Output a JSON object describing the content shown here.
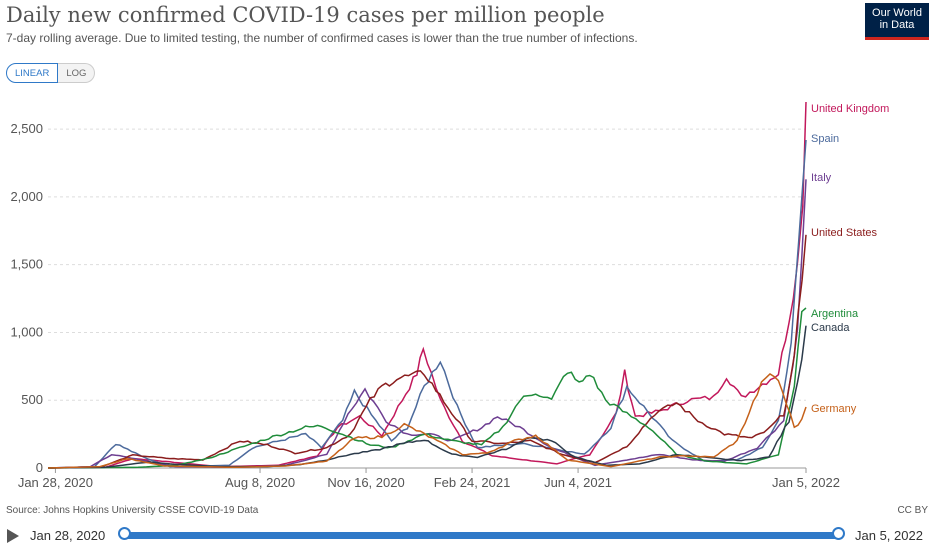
{
  "header": {
    "title": "Daily new confirmed COVID-19 cases per million people",
    "subtitle": "7-day rolling average. Due to limited testing, the number of confirmed cases is lower than the true number of infections.",
    "logo_line1": "Our World",
    "logo_line2": "in Data"
  },
  "controls": {
    "linear_label": "LINEAR",
    "log_label": "LOG",
    "selected": "LINEAR"
  },
  "footer": {
    "source": "Source: Johns Hopkins University CSSE COVID-19 Data",
    "license": "CC BY"
  },
  "timeline": {
    "start_label": "Jan 28, 2020",
    "end_label": "Jan 5, 2022"
  },
  "colors": {
    "accent": "#2f79c8",
    "logo_bg": "#002147",
    "logo_bar": "#ce261e"
  },
  "chart_data": {
    "type": "line",
    "title": "Daily new confirmed COVID-19 cases per million people",
    "ylim": [
      0,
      2700
    ],
    "xlim": [
      "2020-01-21",
      "2022-01-05"
    ],
    "y_ticks": [
      0,
      500,
      1000,
      1500,
      2000,
      2500
    ],
    "y_tick_labels": [
      "0",
      "500",
      "1,000",
      "1,500",
      "2,000",
      "2,500"
    ],
    "x_ticks": [
      "2020-01-28",
      "2020-08-08",
      "2020-11-16",
      "2021-02-24",
      "2021-06-04",
      "2022-01-05"
    ],
    "x_tick_labels": [
      "Jan 28, 2020",
      "Aug 8, 2020",
      "Nov 16, 2020",
      "Feb 24, 2021",
      "Jun 4, 2021",
      "Jan 5, 2022"
    ],
    "grid": true,
    "legend": "right, labels at line ends",
    "series": [
      {
        "name": "United Kingdom",
        "color": "#c2185b",
        "points": [
          [
            "2020-01-21",
            0
          ],
          [
            "2020-03-15",
            5
          ],
          [
            "2020-04-10",
            70
          ],
          [
            "2020-05-15",
            45
          ],
          [
            "2020-07-01",
            10
          ],
          [
            "2020-08-25",
            20
          ],
          [
            "2020-10-01",
            90
          ],
          [
            "2020-10-20",
            300
          ],
          [
            "2020-11-10",
            380
          ],
          [
            "2020-12-01",
            240
          ],
          [
            "2020-12-20",
            500
          ],
          [
            "2021-01-03",
            700
          ],
          [
            "2021-01-09",
            880
          ],
          [
            "2021-01-25",
            500
          ],
          [
            "2021-02-15",
            200
          ],
          [
            "2021-03-15",
            90
          ],
          [
            "2021-05-15",
            30
          ],
          [
            "2021-06-15",
            100
          ],
          [
            "2021-07-10",
            400
          ],
          [
            "2021-07-18",
            700
          ],
          [
            "2021-07-28",
            380
          ],
          [
            "2021-08-20",
            420
          ],
          [
            "2021-09-15",
            500
          ],
          [
            "2021-10-10",
            520
          ],
          [
            "2021-10-22",
            680
          ],
          [
            "2021-11-05",
            520
          ],
          [
            "2021-11-25",
            620
          ],
          [
            "2021-12-10",
            700
          ],
          [
            "2021-12-20",
            1100
          ],
          [
            "2021-12-28",
            1500
          ],
          [
            "2022-01-02",
            2000
          ],
          [
            "2022-01-05",
            2700
          ]
        ]
      },
      {
        "name": "Spain",
        "color": "#4c6a9c",
        "points": [
          [
            "2020-01-21",
            0
          ],
          [
            "2020-03-05",
            10
          ],
          [
            "2020-03-25",
            180
          ],
          [
            "2020-04-20",
            80
          ],
          [
            "2020-05-15",
            10
          ],
          [
            "2020-07-10",
            20
          ],
          [
            "2020-08-01",
            150
          ],
          [
            "2020-09-20",
            250
          ],
          [
            "2020-10-05",
            150
          ],
          [
            "2020-10-25",
            350
          ],
          [
            "2020-11-05",
            560
          ],
          [
            "2020-11-25",
            350
          ],
          [
            "2020-12-10",
            200
          ],
          [
            "2020-12-25",
            300
          ],
          [
            "2021-01-10",
            600
          ],
          [
            "2021-01-25",
            800
          ],
          [
            "2021-02-10",
            450
          ],
          [
            "2021-03-01",
            150
          ],
          [
            "2021-04-10",
            180
          ],
          [
            "2021-05-01",
            160
          ],
          [
            "2021-06-10",
            100
          ],
          [
            "2021-07-05",
            300
          ],
          [
            "2021-07-20",
            600
          ],
          [
            "2021-08-05",
            450
          ],
          [
            "2021-09-01",
            200
          ],
          [
            "2021-10-01",
            50
          ],
          [
            "2021-11-01",
            60
          ],
          [
            "2021-11-25",
            150
          ],
          [
            "2021-12-10",
            350
          ],
          [
            "2021-12-22",
            900
          ],
          [
            "2022-01-05",
            2420
          ]
        ]
      },
      {
        "name": "Italy",
        "color": "#6d3e91",
        "points": [
          [
            "2020-01-21",
            0
          ],
          [
            "2020-03-01",
            10
          ],
          [
            "2020-03-21",
            100
          ],
          [
            "2020-04-20",
            55
          ],
          [
            "2020-05-20",
            10
          ],
          [
            "2020-07-20",
            5
          ],
          [
            "2020-09-01",
            20
          ],
          [
            "2020-10-10",
            100
          ],
          [
            "2020-10-30",
            400
          ],
          [
            "2020-11-15",
            580
          ],
          [
            "2020-12-05",
            350
          ],
          [
            "2020-12-25",
            250
          ],
          [
            "2021-01-15",
            250
          ],
          [
            "2021-02-05",
            200
          ],
          [
            "2021-03-05",
            300
          ],
          [
            "2021-03-20",
            380
          ],
          [
            "2021-04-10",
            300
          ],
          [
            "2021-05-10",
            150
          ],
          [
            "2021-06-20",
            20
          ],
          [
            "2021-07-20",
            60
          ],
          [
            "2021-08-20",
            100
          ],
          [
            "2021-09-20",
            60
          ],
          [
            "2021-10-20",
            50
          ],
          [
            "2021-11-20",
            150
          ],
          [
            "2021-12-15",
            350
          ],
          [
            "2021-12-28",
            1000
          ],
          [
            "2022-01-05",
            2130
          ]
        ]
      },
      {
        "name": "United States",
        "color": "#8b1d1d",
        "points": [
          [
            "2020-01-21",
            0
          ],
          [
            "2020-03-10",
            5
          ],
          [
            "2020-04-10",
            95
          ],
          [
            "2020-05-15",
            70
          ],
          [
            "2020-06-15",
            60
          ],
          [
            "2020-07-20",
            200
          ],
          [
            "2020-08-15",
            170
          ],
          [
            "2020-09-10",
            110
          ],
          [
            "2020-10-10",
            150
          ],
          [
            "2020-11-01",
            250
          ],
          [
            "2020-11-20",
            500
          ],
          [
            "2020-12-01",
            600
          ],
          [
            "2020-12-15",
            660
          ],
          [
            "2021-01-10",
            700
          ],
          [
            "2021-02-01",
            450
          ],
          [
            "2021-02-24",
            200
          ],
          [
            "2021-03-25",
            180
          ],
          [
            "2021-04-20",
            200
          ],
          [
            "2021-05-20",
            100
          ],
          [
            "2021-06-20",
            40
          ],
          [
            "2021-07-20",
            160
          ],
          [
            "2021-08-15",
            400
          ],
          [
            "2021-09-05",
            480
          ],
          [
            "2021-09-25",
            350
          ],
          [
            "2021-10-20",
            250
          ],
          [
            "2021-11-15",
            220
          ],
          [
            "2021-11-30",
            280
          ],
          [
            "2021-12-15",
            400
          ],
          [
            "2021-12-25",
            800
          ],
          [
            "2022-01-05",
            1720
          ]
        ]
      },
      {
        "name": "Argentina",
        "color": "#1f8c3a",
        "points": [
          [
            "2020-01-21",
            0
          ],
          [
            "2020-04-15",
            5
          ],
          [
            "2020-05-20",
            20
          ],
          [
            "2020-06-20",
            70
          ],
          [
            "2020-07-20",
            150
          ],
          [
            "2020-08-20",
            230
          ],
          [
            "2020-09-20",
            300
          ],
          [
            "2020-10-05",
            310
          ],
          [
            "2020-10-25",
            250
          ],
          [
            "2020-11-20",
            170
          ],
          [
            "2020-12-10",
            150
          ],
          [
            "2021-01-10",
            250
          ],
          [
            "2021-02-05",
            200
          ],
          [
            "2021-03-05",
            170
          ],
          [
            "2021-03-25",
            300
          ],
          [
            "2021-04-10",
            500
          ],
          [
            "2021-04-25",
            560
          ],
          [
            "2021-05-10",
            500
          ],
          [
            "2021-05-25",
            720
          ],
          [
            "2021-06-05",
            620
          ],
          [
            "2021-06-15",
            700
          ],
          [
            "2021-06-30",
            500
          ],
          [
            "2021-07-20",
            400
          ],
          [
            "2021-08-10",
            300
          ],
          [
            "2021-09-05",
            100
          ],
          [
            "2021-10-05",
            50
          ],
          [
            "2021-11-10",
            30
          ],
          [
            "2021-12-10",
            100
          ],
          [
            "2021-12-25",
            600
          ],
          [
            "2022-01-01",
            1150
          ],
          [
            "2022-01-05",
            1180
          ]
        ]
      },
      {
        "name": "Canada",
        "color": "#2b3a4a",
        "points": [
          [
            "2020-01-21",
            0
          ],
          [
            "2020-03-15",
            5
          ],
          [
            "2020-04-25",
            45
          ],
          [
            "2020-05-15",
            30
          ],
          [
            "2020-07-01",
            10
          ],
          [
            "2020-08-15",
            10
          ],
          [
            "2020-09-15",
            25
          ],
          [
            "2020-10-10",
            60
          ],
          [
            "2020-11-01",
            100
          ],
          [
            "2020-11-25",
            130
          ],
          [
            "2020-12-15",
            170
          ],
          [
            "2021-01-10",
            210
          ],
          [
            "2021-02-05",
            100
          ],
          [
            "2021-03-01",
            80
          ],
          [
            "2021-04-01",
            150
          ],
          [
            "2021-04-20",
            230
          ],
          [
            "2021-05-10",
            200
          ],
          [
            "2021-06-01",
            80
          ],
          [
            "2021-07-01",
            20
          ],
          [
            "2021-08-01",
            30
          ],
          [
            "2021-09-05",
            100
          ],
          [
            "2021-10-05",
            75
          ],
          [
            "2021-11-05",
            55
          ],
          [
            "2021-12-01",
            80
          ],
          [
            "2021-12-20",
            350
          ],
          [
            "2022-01-01",
            800
          ],
          [
            "2022-01-05",
            1050
          ]
        ]
      },
      {
        "name": "Germany",
        "color": "#c5611a",
        "points": [
          [
            "2020-01-21",
            0
          ],
          [
            "2020-03-10",
            10
          ],
          [
            "2020-04-05",
            70
          ],
          [
            "2020-05-10",
            15
          ],
          [
            "2020-07-15",
            5
          ],
          [
            "2020-09-01",
            15
          ],
          [
            "2020-10-10",
            50
          ],
          [
            "2020-11-05",
            220
          ],
          [
            "2020-12-01",
            230
          ],
          [
            "2020-12-22",
            320
          ],
          [
            "2021-01-10",
            250
          ],
          [
            "2021-02-15",
            100
          ],
          [
            "2021-03-10",
            110
          ],
          [
            "2021-04-05",
            200
          ],
          [
            "2021-04-25",
            240
          ],
          [
            "2021-05-25",
            60
          ],
          [
            "2021-07-05",
            10
          ],
          [
            "2021-08-20",
            80
          ],
          [
            "2021-09-15",
            90
          ],
          [
            "2021-10-10",
            80
          ],
          [
            "2021-11-01",
            200
          ],
          [
            "2021-11-20",
            550
          ],
          [
            "2021-11-28",
            680
          ],
          [
            "2021-12-10",
            650
          ],
          [
            "2021-12-25",
            300
          ],
          [
            "2022-01-01",
            350
          ],
          [
            "2022-01-05",
            450
          ]
        ]
      }
    ]
  }
}
